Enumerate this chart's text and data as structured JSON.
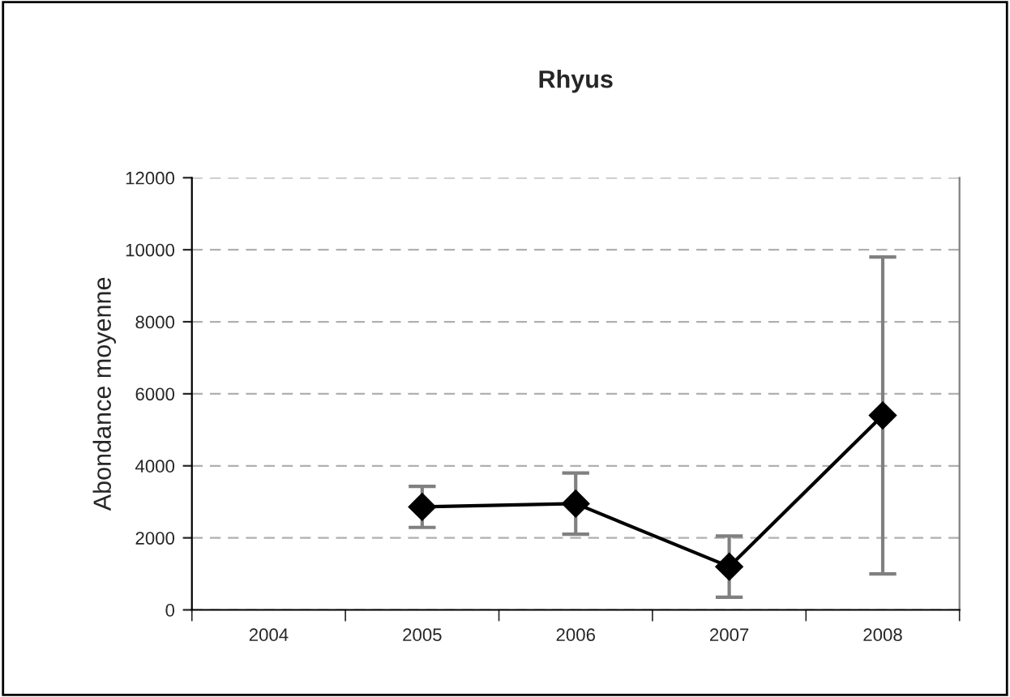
{
  "chart_data": {
    "type": "line",
    "title": "Rhyus",
    "ylabel": "Abondance moyenne",
    "categories": [
      "2004",
      "2005",
      "2006",
      "2007",
      "2008"
    ],
    "series": [
      {
        "color": "#000000",
        "values": [
          null,
          2860,
          2950,
          1200,
          5400
        ],
        "errors": [
          null,
          570,
          850,
          850,
          4400
        ]
      }
    ],
    "ylim": [
      0,
      12000
    ],
    "yticks": [
      0,
      2000,
      4000,
      6000,
      8000,
      10000,
      12000
    ],
    "grid": "y",
    "marker": "diamond",
    "line_style": "solid"
  }
}
